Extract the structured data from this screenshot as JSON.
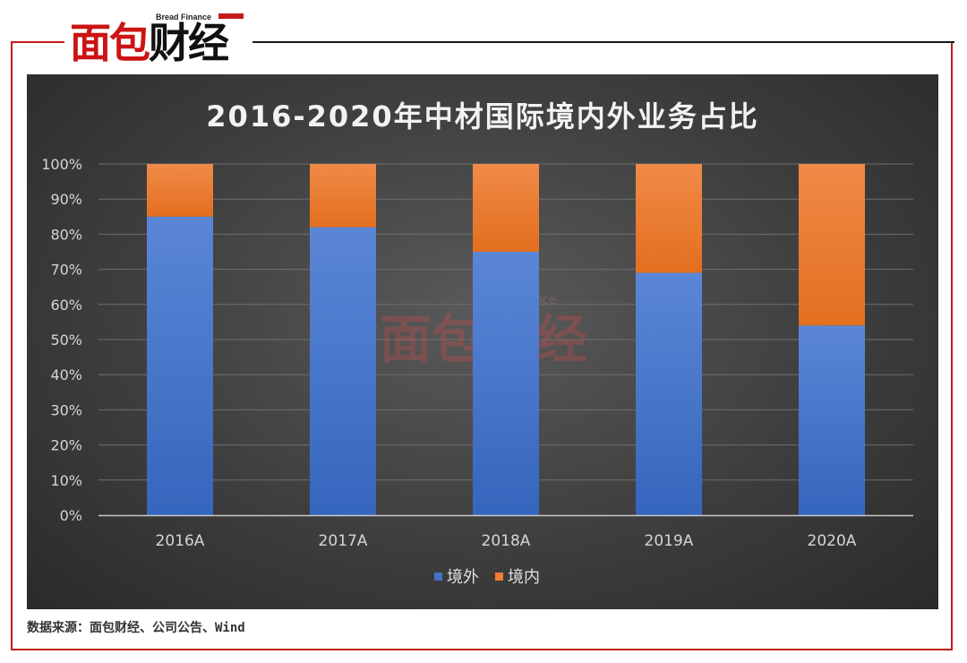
{
  "logo": {
    "main_red": "面包",
    "main_dark": "财经",
    "sub": "Bread Finance"
  },
  "watermark": {
    "main": "面包财经",
    "sub": "Bread Finance"
  },
  "source_text": "数据来源：面包财经、公司公告、Wind",
  "colors": {
    "domestic_overseas": "#4472c4",
    "domestic": "#ed7d31",
    "accent_red": "#c41a1a"
  },
  "chart_data": {
    "type": "bar",
    "stacked": true,
    "title": "2016-2020年中材国际境内外业务占比",
    "categories": [
      "2016A",
      "2017A",
      "2018A",
      "2019A",
      "2020A"
    ],
    "series": [
      {
        "name": "境外",
        "color": "#4472c4",
        "values": [
          85,
          82,
          75,
          69,
          54
        ]
      },
      {
        "name": "境内",
        "color": "#ed7d31",
        "values": [
          15,
          18,
          25,
          31,
          46
        ]
      }
    ],
    "y_ticks": [
      "0%",
      "10%",
      "20%",
      "30%",
      "40%",
      "50%",
      "60%",
      "70%",
      "80%",
      "90%",
      "100%"
    ],
    "ylim": [
      0,
      100
    ],
    "grid": true,
    "legend_position": "bottom"
  }
}
